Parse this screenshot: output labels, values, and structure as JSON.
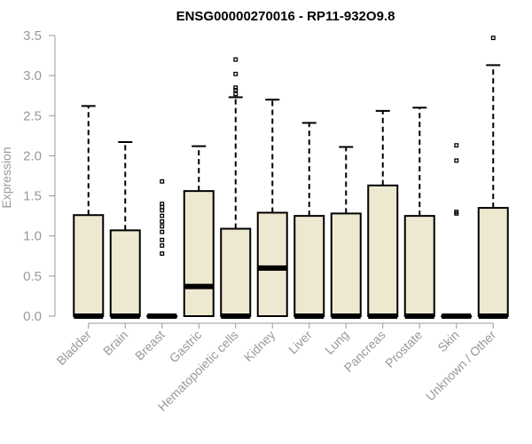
{
  "chart_data": {
    "type": "box",
    "title": "ENSG00000270016 - RP11-932O9.8",
    "xlabel": "",
    "ylabel": "Expression",
    "ylim": [
      0,
      3.5
    ],
    "yticks": [
      "0.0",
      "0.5",
      "1.0",
      "1.5",
      "2.0",
      "2.5",
      "3.0",
      "3.5"
    ],
    "box_fill": "#ede8d0",
    "grid": false,
    "categories": [
      "Bladder",
      "Brain",
      "Breast",
      "Gastric",
      "Hematopoietic cells",
      "Kidney",
      "Liver",
      "Lung",
      "Pancreas",
      "Prostate",
      "Skin",
      "Unknown / Other"
    ],
    "boxes": [
      {
        "q1": 0,
        "median": 0,
        "q3": 1.26,
        "whisker_low": 0,
        "whisker_high": 2.62,
        "outliers": []
      },
      {
        "q1": 0,
        "median": 0,
        "q3": 1.07,
        "whisker_low": 0,
        "whisker_high": 2.17,
        "outliers": []
      },
      {
        "q1": 0,
        "median": 0,
        "q3": 0,
        "whisker_low": 0,
        "whisker_high": 0,
        "outliers": [
          0.78,
          0.88,
          0.95,
          1.05,
          1.12,
          1.18,
          1.25,
          1.32,
          1.36,
          1.4,
          1.68
        ]
      },
      {
        "q1": 0,
        "median": 0.37,
        "q3": 1.56,
        "whisker_low": 0,
        "whisker_high": 2.12,
        "outliers": []
      },
      {
        "q1": 0,
        "median": 0,
        "q3": 1.09,
        "whisker_low": 0,
        "whisker_high": 2.73,
        "outliers": [
          2.77,
          2.82,
          2.85,
          3.02,
          3.2
        ]
      },
      {
        "q1": 0,
        "median": 0.6,
        "q3": 1.29,
        "whisker_low": 0,
        "whisker_high": 2.7,
        "outliers": []
      },
      {
        "q1": 0,
        "median": 0,
        "q3": 1.25,
        "whisker_low": 0,
        "whisker_high": 2.41,
        "outliers": []
      },
      {
        "q1": 0,
        "median": 0,
        "q3": 1.28,
        "whisker_low": 0,
        "whisker_high": 2.11,
        "outliers": []
      },
      {
        "q1": 0,
        "median": 0,
        "q3": 1.63,
        "whisker_low": 0,
        "whisker_high": 2.56,
        "outliers": []
      },
      {
        "q1": 0,
        "median": 0,
        "q3": 1.25,
        "whisker_low": 0,
        "whisker_high": 2.6,
        "outliers": []
      },
      {
        "q1": 0,
        "median": 0,
        "q3": 0,
        "whisker_low": 0,
        "whisker_high": 0,
        "outliers": [
          1.28,
          1.3,
          1.94,
          2.13
        ]
      },
      {
        "q1": 0,
        "median": 0,
        "q3": 1.35,
        "whisker_low": 0,
        "whisker_high": 3.13,
        "outliers": [
          3.47
        ]
      }
    ]
  }
}
